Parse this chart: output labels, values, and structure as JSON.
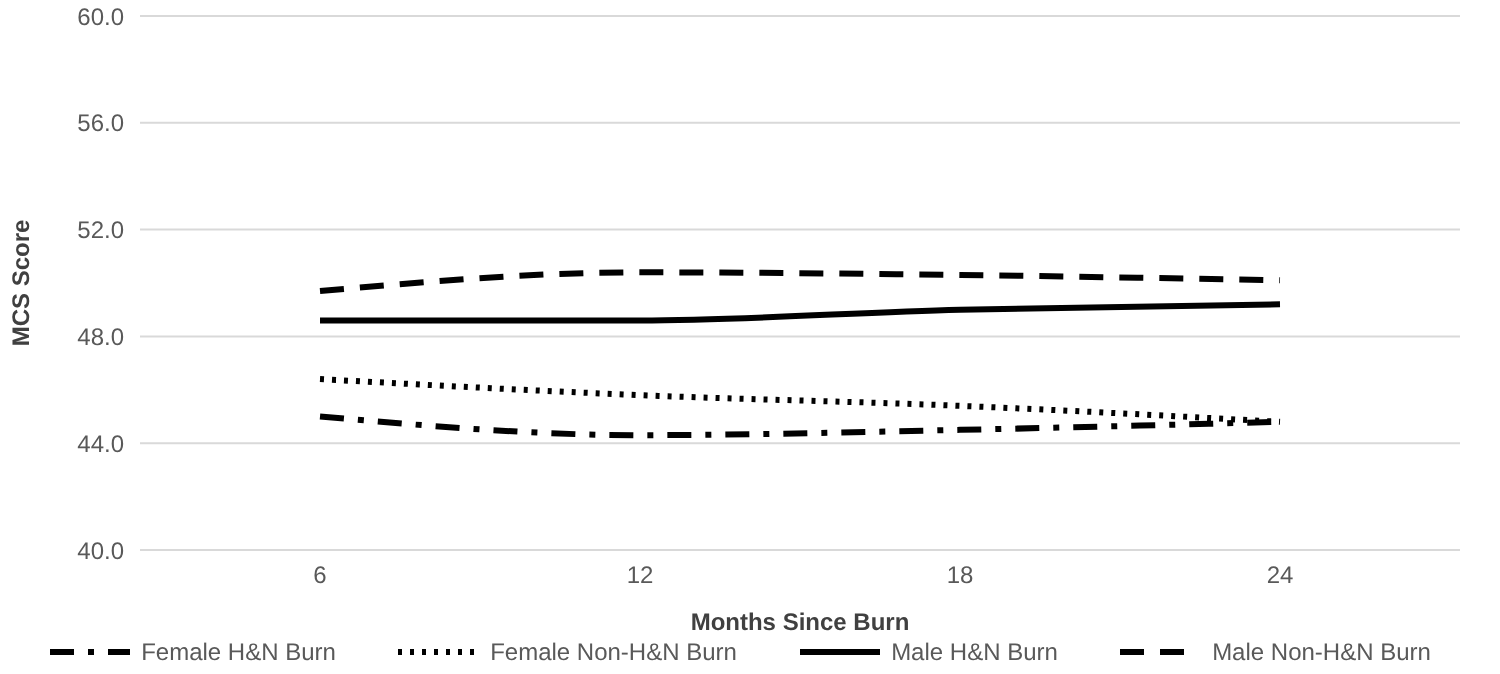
{
  "chart_data": {
    "type": "line",
    "xlabel": "Months Since Burn",
    "ylabel": "MCS Score",
    "categories": [
      "6",
      "12",
      "18",
      "24"
    ],
    "ylim": [
      40,
      60
    ],
    "yticks": [
      {
        "value": 40,
        "label": "40.0"
      },
      {
        "value": 44,
        "label": "44.0"
      },
      {
        "value": 48,
        "label": "48.0"
      },
      {
        "value": 52,
        "label": "52.0"
      },
      {
        "value": 56,
        "label": "56.0"
      },
      {
        "value": 60,
        "label": "60.0"
      }
    ],
    "grid": "y",
    "legend": "bottom",
    "marker": "none",
    "series": [
      {
        "name": "Female H&N Burn",
        "color": "#000000",
        "line_style": "dashdot",
        "values": [
          45.0,
          44.3,
          44.5,
          44.8
        ]
      },
      {
        "name": "Female Non-H&N Burn",
        "color": "#000000",
        "line_style": "dotted",
        "values": [
          46.4,
          45.8,
          45.4,
          44.8
        ]
      },
      {
        "name": "Male H&N Burn",
        "color": "#000000",
        "line_style": "solid",
        "values": [
          48.6,
          48.6,
          49.0,
          49.2
        ]
      },
      {
        "name": "Male Non-H&N Burn",
        "color": "#000000",
        "line_style": "dashed",
        "values": [
          49.7,
          50.4,
          50.3,
          50.1
        ]
      }
    ]
  }
}
